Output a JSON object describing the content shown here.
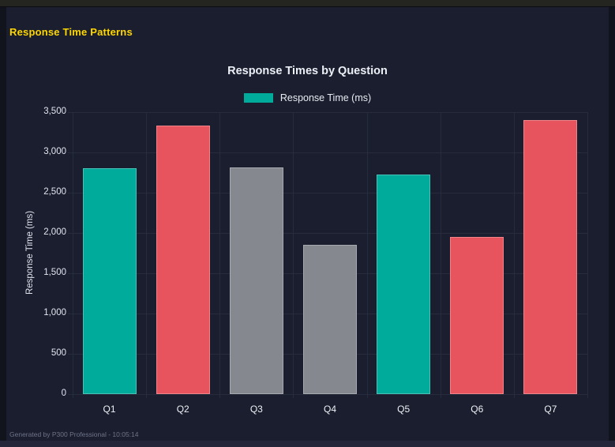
{
  "page": {
    "title": "Response Time Patterns",
    "title_color": "#ffd700",
    "footer": "Generated by P300 Professional - 10:05:14"
  },
  "colors": {
    "teal": "#00ab9c",
    "red": "#e8545e",
    "gray": "#868890",
    "card_background": "#1a1e2e",
    "outer_background": "#12141d",
    "gridline": "#272c3d"
  },
  "chart_data": {
    "type": "bar",
    "title": "Response Times by Question",
    "legend": [
      {
        "label": "Response Time (ms)",
        "color": "#00ab9c"
      }
    ],
    "legend_position": "top",
    "categories": [
      "Q1",
      "Q2",
      "Q3",
      "Q4",
      "Q5",
      "Q6",
      "Q7"
    ],
    "series": [
      {
        "name": "Response Time (ms)",
        "values": [
          2800,
          3330,
          2810,
          1850,
          2730,
          1950,
          3400
        ]
      }
    ],
    "bar_colors": [
      "#00ab9c",
      "#e8545e",
      "#868890",
      "#868890",
      "#00ab9c",
      "#e8545e",
      "#e8545e"
    ],
    "xlabel": "",
    "ylabel": "Response Time (ms)",
    "ylim": [
      0,
      3500
    ],
    "ytick_step": 500,
    "ytick_labels": [
      "0",
      "500",
      "1,000",
      "1,500",
      "2,000",
      "2,500",
      "3,000",
      "3,500"
    ],
    "grid": true
  }
}
